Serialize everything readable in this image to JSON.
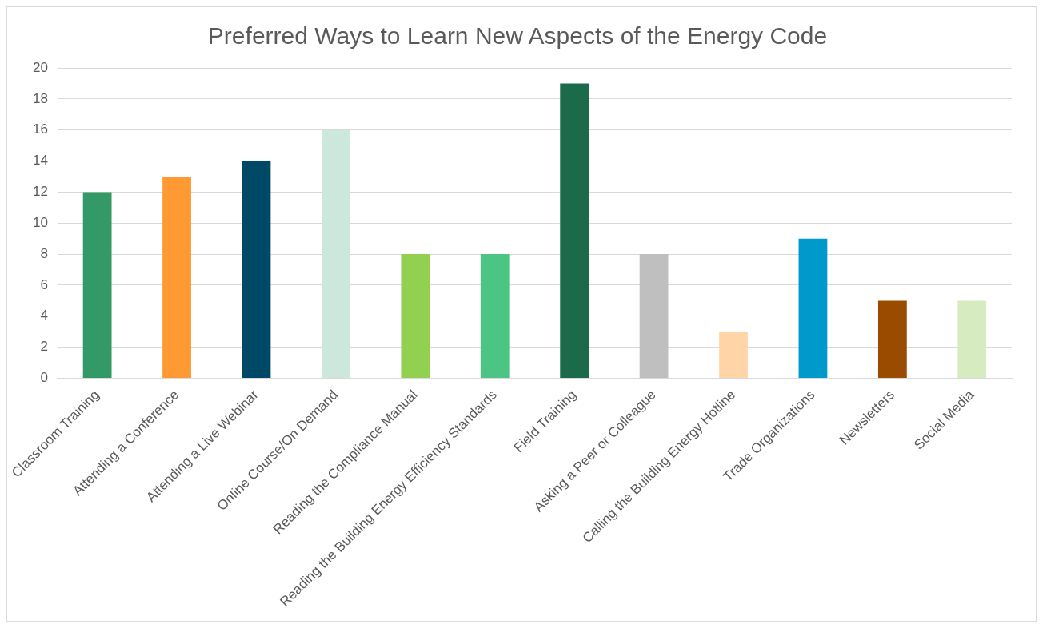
{
  "chart_data": {
    "type": "bar",
    "title": "Preferred Ways to Learn New Aspects of the Energy Code",
    "categories": [
      "Classroom Training",
      "Attending a Conference",
      "Attending a Live Webinar",
      "Online Course/On Demand",
      "Reading the Compliance Manual",
      "Reading the Building Energy Efficiency Standards",
      "Field Training",
      "Asking a Peer or Colleague",
      "Calling the Building Energy Hotline",
      "Trade Organizations",
      "Newsletters",
      "Social Media"
    ],
    "values": [
      12,
      13,
      14,
      16,
      8,
      8,
      19,
      8,
      3,
      9,
      5,
      5
    ],
    "colors": [
      "#339966",
      "#ff9933",
      "#004966",
      "#cce8dc",
      "#92d050",
      "#4cc584",
      "#1b6b4a",
      "#bfbfbf",
      "#ffd5a8",
      "#0099cc",
      "#994c00",
      "#d6ecc0"
    ],
    "ylim": [
      0,
      20
    ],
    "yticks": [
      0,
      2,
      4,
      6,
      8,
      10,
      12,
      14,
      16,
      18,
      20
    ],
    "grid": "y"
  }
}
